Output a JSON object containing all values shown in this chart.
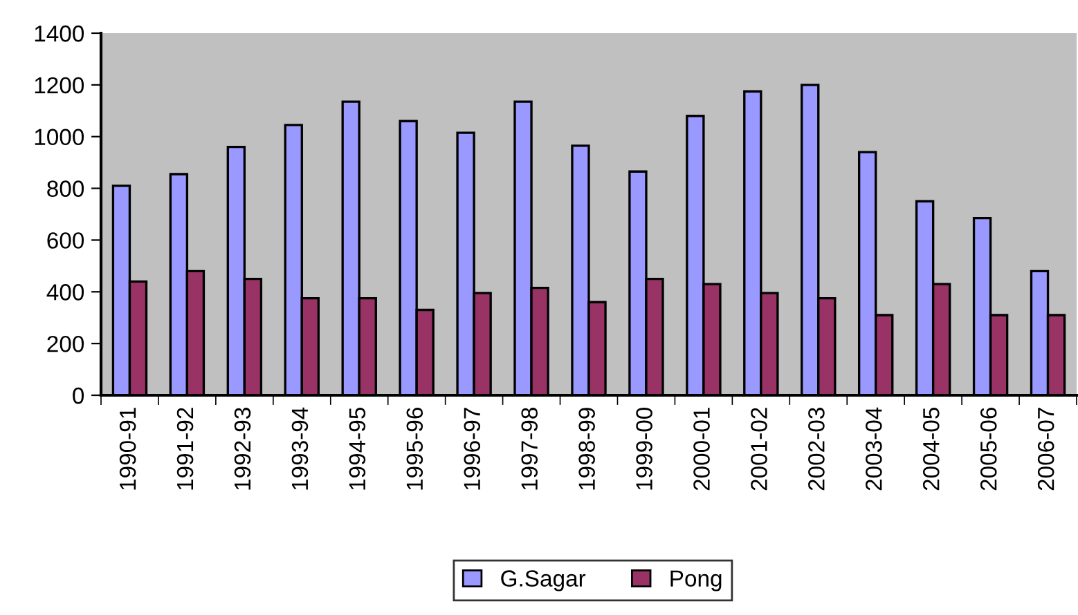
{
  "chart_data": {
    "type": "bar",
    "categories": [
      "1990-91",
      "1991-92",
      "1992-93",
      "1993-94",
      "1994-95",
      "1995-96",
      "1996-97",
      "1997-98",
      "1998-99",
      "1999-00",
      "2000-01",
      "2001-02",
      "2002-03",
      "2003-04",
      "2004-05",
      "2005-06",
      "2006-07"
    ],
    "series": [
      {
        "name": "G.Sagar",
        "color": "#9999ff",
        "values": [
          810,
          855,
          960,
          1045,
          1135,
          1060,
          1015,
          1135,
          965,
          865,
          1080,
          1175,
          1200,
          940,
          750,
          685,
          480
        ]
      },
      {
        "name": "Pong",
        "color": "#993366",
        "values": [
          440,
          480,
          450,
          375,
          375,
          330,
          395,
          415,
          360,
          450,
          430,
          395,
          375,
          310,
          430,
          310,
          310
        ]
      }
    ],
    "ylim": [
      0,
      1400
    ],
    "yticks": [
      0,
      200,
      400,
      600,
      800,
      1000,
      1200,
      1400
    ],
    "grid": false,
    "legend": "bottom"
  }
}
